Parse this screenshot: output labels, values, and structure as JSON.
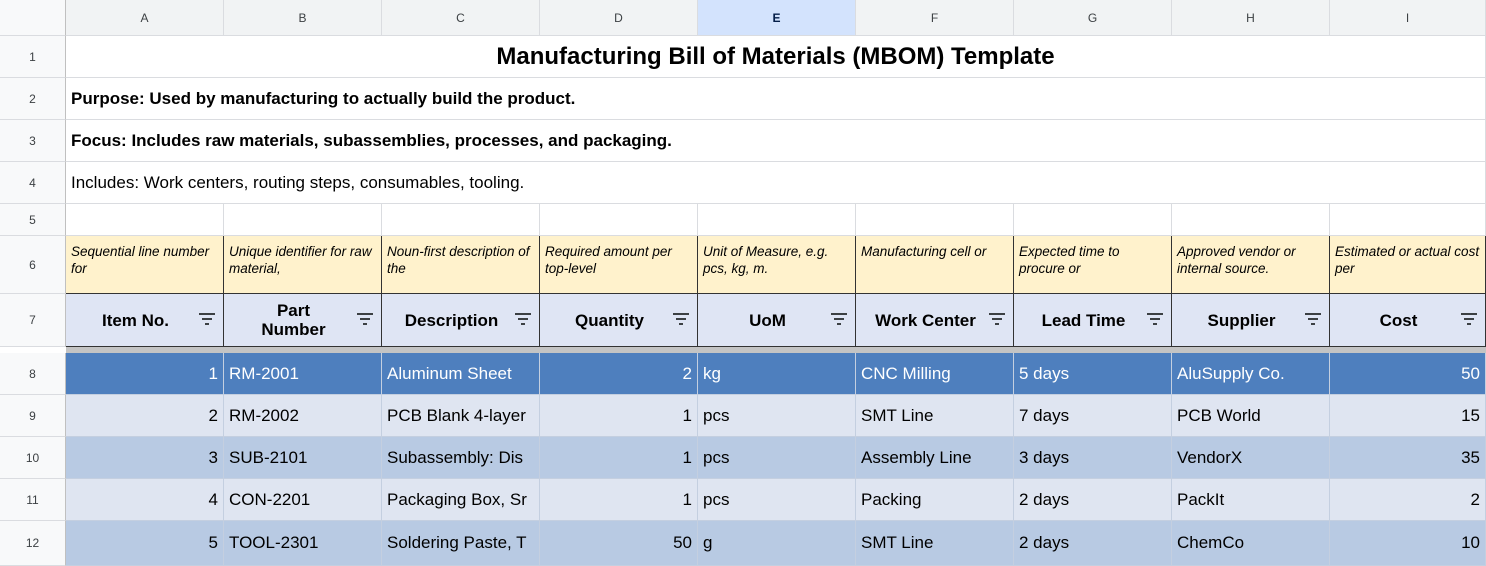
{
  "columns": [
    "A",
    "B",
    "C",
    "D",
    "E",
    "F",
    "G",
    "H",
    "I"
  ],
  "row_numbers": [
    "1",
    "2",
    "3",
    "4",
    "5",
    "6",
    "7",
    "8",
    "9",
    "10",
    "11",
    "12"
  ],
  "sheet": {
    "title": "Manufacturing Bill of Materials (MBOM) Template",
    "purpose": "Purpose: Used by manufacturing to actually build the product.",
    "focus": "Focus: Includes raw materials, subassemblies, processes, and packaging.",
    "includes": "Includes: Work centers, routing steps, consumables, tooling."
  },
  "descriptions": [
    "Sequential line number for",
    "Unique identifier for raw material,",
    "Noun-first description of the",
    "Required amount per top-level",
    "Unit of Measure, e.g. pcs, kg, m.",
    "Manufacturing cell or",
    "Expected time to procure or",
    "Approved vendor or internal source.",
    "Estimated or actual cost per"
  ],
  "headers": [
    "Item No.",
    "Part Number",
    "Description",
    "Quantity",
    "UoM",
    "Work Center",
    "Lead Time",
    "Supplier",
    "Cost"
  ],
  "rows": [
    {
      "item": "1",
      "part": "RM-2001",
      "description": "Aluminum Sheet",
      "quantity": "2",
      "uom": "kg",
      "work_center": "CNC Milling",
      "lead_time": "5 days",
      "supplier": "AluSupply Co.",
      "cost": "50"
    },
    {
      "item": "2",
      "part": "RM-2002",
      "description": "PCB Blank 4-layer",
      "quantity": "1",
      "uom": "pcs",
      "work_center": "SMT Line",
      "lead_time": "7 days",
      "supplier": "PCB World",
      "cost": "15"
    },
    {
      "item": "3",
      "part": "SUB-2101",
      "description": "Subassembly: Dis",
      "quantity": "1",
      "uom": "pcs",
      "work_center": "Assembly Line",
      "lead_time": "3 days",
      "supplier": "VendorX",
      "cost": "35"
    },
    {
      "item": "4",
      "part": "CON-2201",
      "description": "Packaging Box, Sr",
      "quantity": "1",
      "uom": "pcs",
      "work_center": "Packing",
      "lead_time": "2 days",
      "supplier": "PackIt",
      "cost": "2"
    },
    {
      "item": "5",
      "part": "TOOL-2301",
      "description": "Soldering Paste, T",
      "quantity": "50",
      "uom": "g",
      "work_center": "SMT Line",
      "lead_time": "2 days",
      "supplier": "ChemCo",
      "cost": "10"
    }
  ]
}
